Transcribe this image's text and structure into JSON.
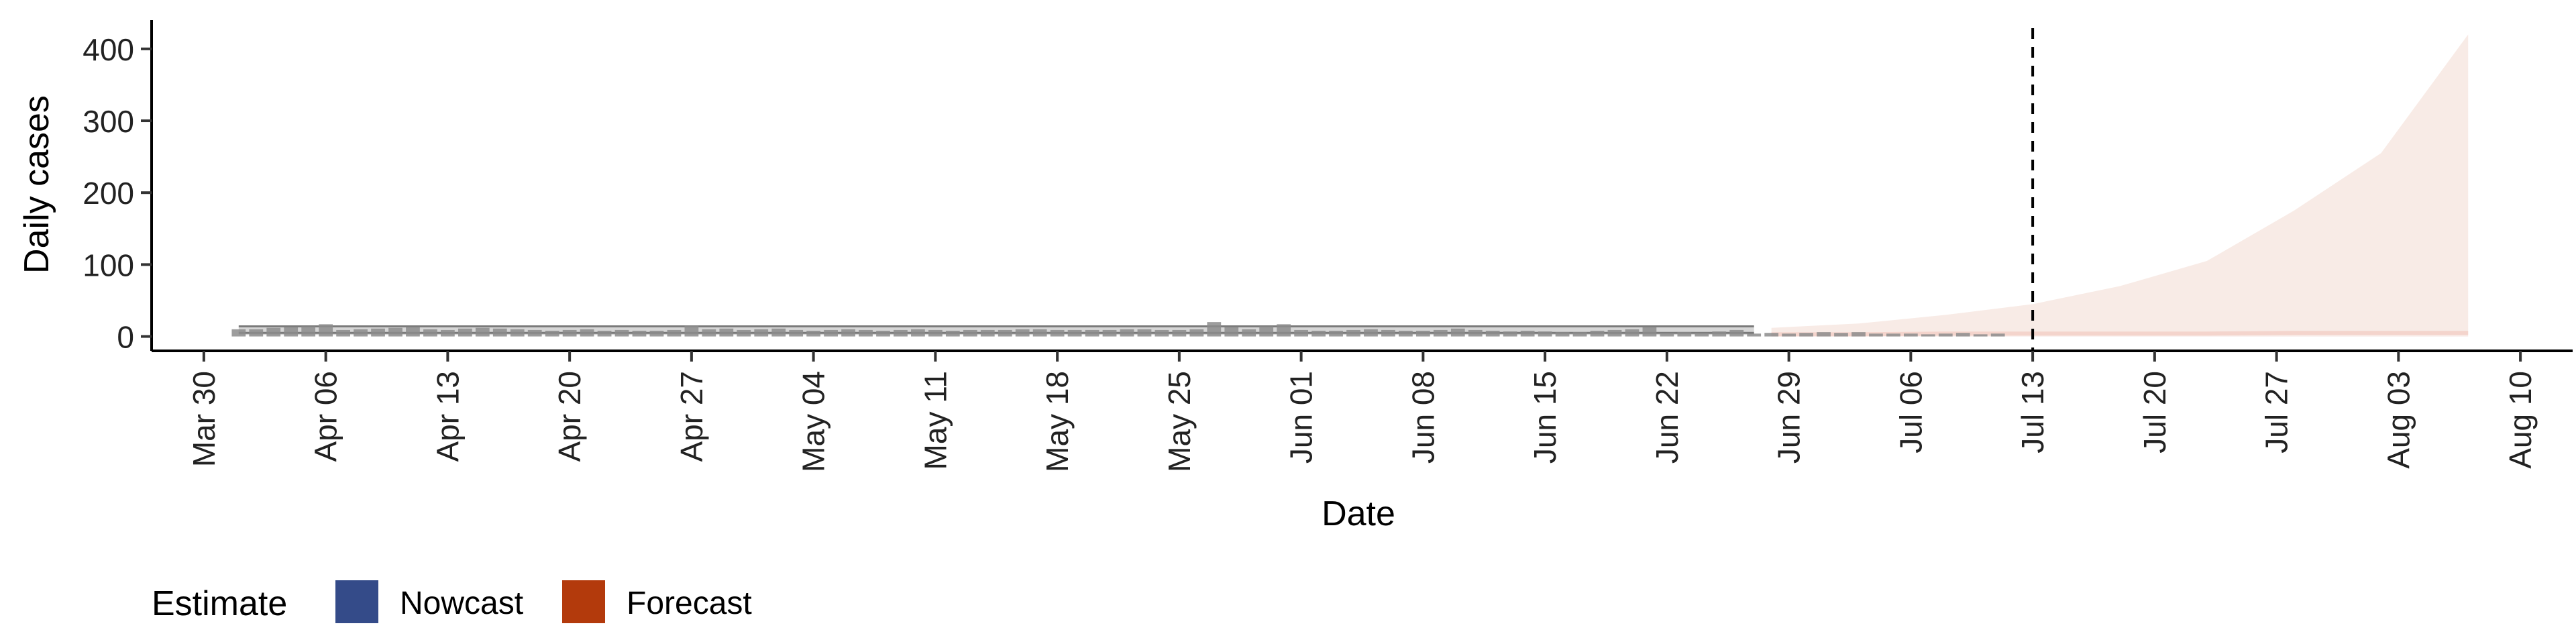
{
  "chart_data": {
    "type": "area",
    "title": "",
    "xlabel": "Date",
    "ylabel": "Daily cases",
    "ylim": [
      -20,
      440
    ],
    "xlim": [
      "2020-03-27",
      "2020-08-13"
    ],
    "y_ticks": [
      0,
      100,
      200,
      300,
      400
    ],
    "x_ticks": [
      {
        "date": "2020-03-30",
        "label": "Mar 30"
      },
      {
        "date": "2020-04-06",
        "label": "Apr 06"
      },
      {
        "date": "2020-04-13",
        "label": "Apr 13"
      },
      {
        "date": "2020-04-20",
        "label": "Apr 20"
      },
      {
        "date": "2020-04-27",
        "label": "Apr 27"
      },
      {
        "date": "2020-05-04",
        "label": "May 04"
      },
      {
        "date": "2020-05-11",
        "label": "May 11"
      },
      {
        "date": "2020-05-18",
        "label": "May 18"
      },
      {
        "date": "2020-05-25",
        "label": "May 25"
      },
      {
        "date": "2020-06-01",
        "label": "Jun 01"
      },
      {
        "date": "2020-06-08",
        "label": "Jun 08"
      },
      {
        "date": "2020-06-15",
        "label": "Jun 15"
      },
      {
        "date": "2020-06-22",
        "label": "Jun 22"
      },
      {
        "date": "2020-06-29",
        "label": "Jun 29"
      },
      {
        "date": "2020-07-06",
        "label": "Jul 06"
      },
      {
        "date": "2020-07-13",
        "label": "Jul 13"
      },
      {
        "date": "2020-07-20",
        "label": "Jul 20"
      },
      {
        "date": "2020-07-27",
        "label": "Jul 27"
      },
      {
        "date": "2020-08-03",
        "label": "Aug 03"
      },
      {
        "date": "2020-08-10",
        "label": "Aug 10"
      }
    ],
    "vline": {
      "date": "2020-07-13",
      "style": "dashed"
    },
    "grid": false,
    "legend": {
      "title": "Estimate",
      "position": "bottom-left",
      "entries": [
        {
          "name": "Nowcast",
          "color": "#344b89"
        },
        {
          "name": "Forecast",
          "color": "#b33a0c"
        }
      ]
    },
    "colors": {
      "observed_bars": "#8c8c8c",
      "nowcast_band": "#b4b4b4",
      "forecast_band": "#f8ebe6",
      "forecast_median": "#f4d4cc"
    },
    "observed_cases": {
      "start": "2020-04-01",
      "values": [
        10,
        10,
        12,
        13,
        14,
        17,
        9,
        10,
        11,
        12,
        13,
        10,
        9,
        11,
        12,
        11,
        10,
        9,
        8,
        9,
        10,
        8,
        9,
        8,
        8,
        9,
        15,
        10,
        11,
        9,
        10,
        11,
        9,
        8,
        9,
        10,
        9,
        8,
        9,
        10,
        9,
        8,
        9,
        9,
        9,
        10,
        10,
        9,
        9,
        9,
        9,
        10,
        10,
        9,
        9,
        10,
        20,
        13,
        10,
        14,
        17,
        9,
        8,
        8,
        9,
        10,
        9,
        8,
        8,
        9,
        11,
        9,
        8,
        7,
        8,
        7,
        6,
        6,
        8,
        9,
        10,
        13,
        5,
        6,
        5,
        7,
        9,
        4,
        5,
        4,
        5,
        6,
        5,
        6,
        4,
        4,
        4,
        3,
        4,
        5,
        3,
        4
      ]
    },
    "nowcast": {
      "start": "2020-04-01",
      "end": "2020-06-27",
      "lower": 2,
      "upper": 14
    },
    "forecast": {
      "x": [
        "2020-06-28",
        "2020-07-03",
        "2020-07-08",
        "2020-07-13",
        "2020-07-18",
        "2020-07-23",
        "2020-07-28",
        "2020-08-02",
        "2020-08-07"
      ],
      "lower": [
        0,
        0,
        0,
        0,
        0,
        0,
        0,
        0,
        0
      ],
      "upper": [
        12,
        18,
        30,
        45,
        70,
        105,
        175,
        255,
        420
      ],
      "median": [
        3,
        3,
        4,
        4,
        4,
        4,
        5,
        5,
        5
      ]
    }
  }
}
